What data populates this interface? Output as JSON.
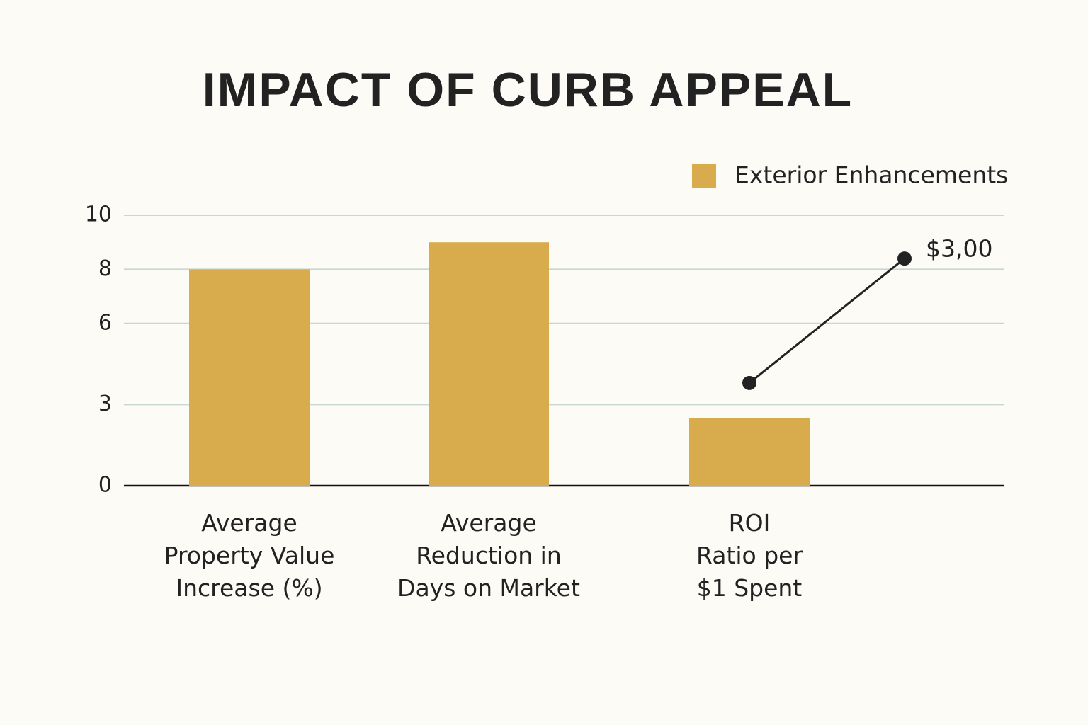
{
  "chart_data": {
    "type": "bar",
    "title": "IMPACT OF CURB APPEAL",
    "categories": [
      "Average\nProperty Value\nIncrease (%)",
      "Average\nReduction in\nDays on Market",
      "ROI\nRatio per\n$1 Spent"
    ],
    "series": [
      {
        "name": "Exterior Enhancements",
        "color": "#d8ab4c",
        "values": [
          8,
          9,
          2.5
        ]
      }
    ],
    "ylim": [
      0,
      10
    ],
    "yticks": [
      0,
      3,
      6,
      8,
      10
    ],
    "grid": true,
    "legend": "top-right",
    "annotation": {
      "text": "$3,00",
      "values": [
        3.8,
        8.4
      ],
      "color": "#222222"
    }
  }
}
